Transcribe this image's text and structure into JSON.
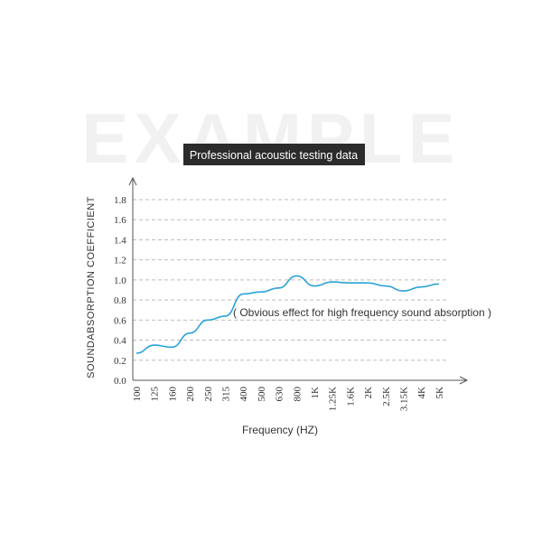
{
  "watermark": "EXAMPLE",
  "chart_data": {
    "type": "line",
    "title": "Professional acoustic testing data",
    "xlabel": "Frequency (HZ)",
    "ylabel": "SOUNDABSORPTION COEFFICIENT",
    "categories": [
      "100",
      "125",
      "160",
      "200",
      "250",
      "315",
      "400",
      "500",
      "630",
      "800",
      "1K",
      "1.25K",
      "1.6K",
      "2K",
      "2.5K",
      "3.15K",
      "4K",
      "5K"
    ],
    "y_ticks": [
      "0.0",
      "0.2",
      "0.4",
      "0.6",
      "0.8",
      "1.0",
      "1.2",
      "1.4",
      "1.6",
      "1.8"
    ],
    "ylim": [
      0,
      1.8
    ],
    "grid": true,
    "series": [
      {
        "values": [
          0.27,
          0.35,
          0.33,
          0.47,
          0.6,
          0.64,
          0.86,
          0.88,
          0.92,
          1.04,
          0.94,
          0.98,
          0.97,
          0.97,
          0.94,
          0.89,
          0.93,
          0.96
        ]
      }
    ],
    "annotation": "( Obvious effect for high frequency sound absorption )",
    "colors": {
      "series": "#2aa3d8",
      "title_bg": "#2b2b2b"
    }
  }
}
